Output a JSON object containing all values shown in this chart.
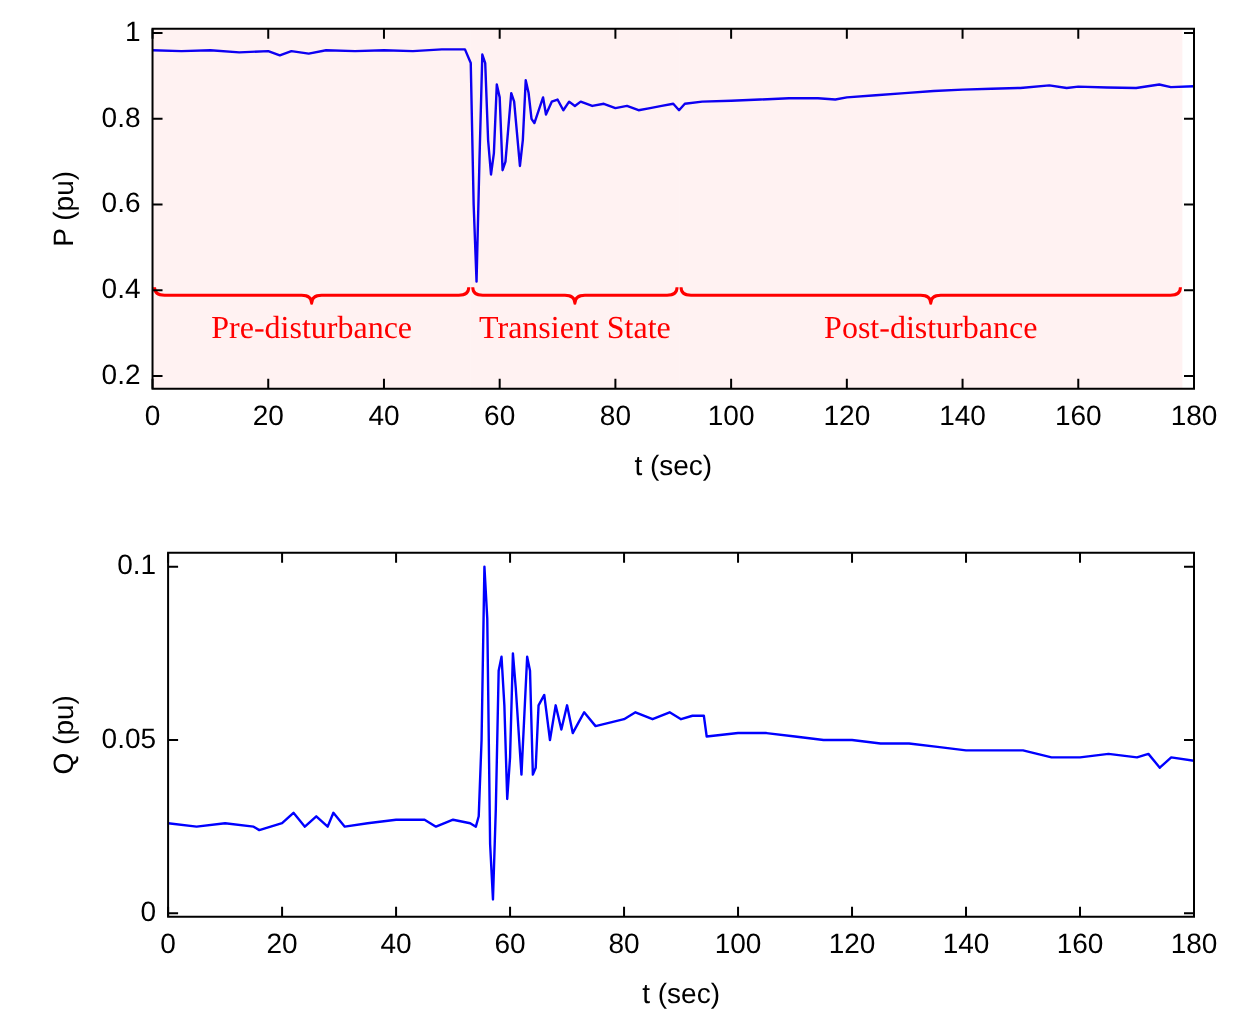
{
  "chart_data": [
    {
      "type": "line",
      "xlabel": "t (sec)",
      "ylabel": "P (pu)",
      "xlim": [
        0,
        180
      ],
      "xticks": [
        0,
        20,
        40,
        60,
        80,
        100,
        120,
        140,
        160,
        180
      ],
      "ylim": [
        0.17,
        1.01
      ],
      "yticks": [
        0.2,
        0.4,
        0.6,
        0.8,
        1
      ],
      "grid": false,
      "legend": false,
      "marker": "none",
      "line_style": "solid",
      "x": [
        0,
        5,
        10,
        15,
        20,
        22,
        24,
        27,
        30,
        35,
        40,
        45,
        50,
        54,
        55,
        55.5,
        56,
        56.5,
        57,
        57.5,
        58,
        58.5,
        59,
        59.5,
        60,
        60.5,
        61,
        62,
        62.5,
        63.5,
        64,
        64.5,
        65,
        65.5,
        66,
        67,
        67.5,
        68,
        69,
        70,
        71,
        72,
        73,
        74,
        76,
        78,
        80,
        82,
        84,
        86,
        88,
        90,
        91,
        92,
        95,
        100,
        105,
        110,
        115,
        118,
        120,
        125,
        130,
        135,
        140,
        145,
        150,
        155,
        158,
        160,
        165,
        170,
        174,
        176,
        180
      ],
      "series": [
        {
          "color": "#0000ff",
          "values": [
            0.96,
            0.958,
            0.96,
            0.955,
            0.958,
            0.948,
            0.958,
            0.952,
            0.96,
            0.958,
            0.96,
            0.958,
            0.962,
            0.962,
            0.93,
            0.6,
            0.42,
            0.7,
            0.95,
            0.93,
            0.75,
            0.67,
            0.72,
            0.88,
            0.85,
            0.68,
            0.7,
            0.86,
            0.84,
            0.69,
            0.75,
            0.89,
            0.86,
            0.8,
            0.79,
            0.83,
            0.85,
            0.81,
            0.84,
            0.845,
            0.82,
            0.84,
            0.83,
            0.84,
            0.83,
            0.835,
            0.825,
            0.83,
            0.82,
            0.825,
            0.83,
            0.835,
            0.82,
            0.835,
            0.84,
            0.842,
            0.845,
            0.848,
            0.848,
            0.845,
            0.85,
            0.855,
            0.86,
            0.865,
            0.868,
            0.87,
            0.872,
            0.878,
            0.872,
            0.875,
            0.873,
            0.872,
            0.88,
            0.874,
            0.876
          ]
        }
      ],
      "bands": [
        {
          "axis": "x",
          "from": 0,
          "to": 55,
          "label": "Pre-disturbance",
          "color": "#ff0000"
        },
        {
          "axis": "x",
          "from": 55,
          "to": 91,
          "label": "Transient State",
          "color": "#ff0000"
        },
        {
          "axis": "x",
          "from": 91,
          "to": 178,
          "label": "Post-disturbance",
          "color": "#ff0000"
        }
      ]
    },
    {
      "type": "line",
      "xlabel": "t (sec)",
      "ylabel": "Q (pu)",
      "xlim": [
        0,
        180
      ],
      "xticks": [
        0,
        20,
        40,
        60,
        80,
        100,
        120,
        140,
        160,
        180
      ],
      "ylim": [
        -0.001,
        0.104
      ],
      "yticks": [
        0,
        0.05,
        0.1
      ],
      "grid": false,
      "legend": false,
      "marker": "none",
      "line_style": "solid",
      "x": [
        0,
        5,
        10,
        15,
        16,
        20,
        22,
        24,
        26,
        28,
        29,
        31,
        35,
        40,
        45,
        47,
        50,
        53,
        54,
        54.5,
        55,
        55.5,
        56,
        56.5,
        57,
        57.5,
        58,
        58.5,
        59,
        59.5,
        60,
        60.5,
        61,
        62,
        63,
        63.5,
        64,
        64.5,
        65,
        66,
        67,
        68,
        69,
        70,
        71,
        72,
        73,
        75,
        80,
        82,
        85,
        88,
        90,
        92,
        94,
        94.5,
        100,
        105,
        110,
        115,
        120,
        125,
        130,
        135,
        140,
        145,
        150,
        155,
        160,
        165,
        170,
        172,
        174,
        176,
        180
      ],
      "series": [
        {
          "color": "#0000ff",
          "values": [
            0.026,
            0.025,
            0.026,
            0.025,
            0.024,
            0.026,
            0.029,
            0.025,
            0.028,
            0.025,
            0.029,
            0.025,
            0.026,
            0.027,
            0.027,
            0.025,
            0.027,
            0.026,
            0.025,
            0.028,
            0.05,
            0.1,
            0.085,
            0.02,
            0.004,
            0.03,
            0.07,
            0.074,
            0.06,
            0.033,
            0.045,
            0.075,
            0.065,
            0.04,
            0.074,
            0.07,
            0.04,
            0.042,
            0.06,
            0.063,
            0.05,
            0.06,
            0.053,
            0.06,
            0.052,
            0.055,
            0.058,
            0.054,
            0.056,
            0.058,
            0.056,
            0.058,
            0.056,
            0.057,
            0.057,
            0.051,
            0.052,
            0.052,
            0.051,
            0.05,
            0.05,
            0.049,
            0.049,
            0.048,
            0.047,
            0.047,
            0.047,
            0.045,
            0.045,
            0.046,
            0.045,
            0.046,
            0.042,
            0.045,
            0.044
          ]
        }
      ]
    }
  ]
}
